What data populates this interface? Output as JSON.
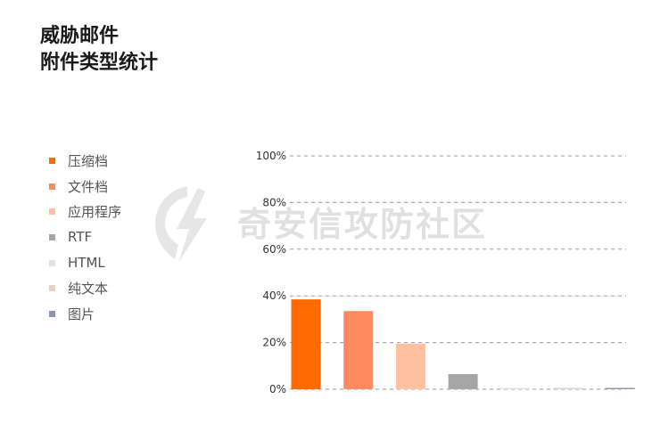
{
  "title_lines": [
    "威胁邮件",
    "附件类型统计"
  ],
  "watermark": "奇安信攻防社区",
  "colors": {
    "grid": "#999999",
    "tick_text": "#333333"
  },
  "chart_data": {
    "type": "bar",
    "title": "威胁邮件\n附件类型统计",
    "categories": [
      "压缩档",
      "文件档",
      "应用程序",
      "RTF",
      "HTML",
      "纯文本",
      "图片"
    ],
    "values": [
      0.385,
      0.335,
      0.195,
      0.065,
      0.005,
      0.005,
      0.005
    ],
    "colors": [
      "#ff6a00",
      "#ff8a5f",
      "#ffc0a0",
      "#a6a6a6",
      "#e2e2e2",
      "#ead2bd",
      "#8c93bf"
    ],
    "yticks": [
      "0%",
      "20%",
      "40%",
      "60%",
      "80%",
      "100%"
    ],
    "ylim": [
      0,
      1
    ],
    "grid": true,
    "legend": "left"
  }
}
